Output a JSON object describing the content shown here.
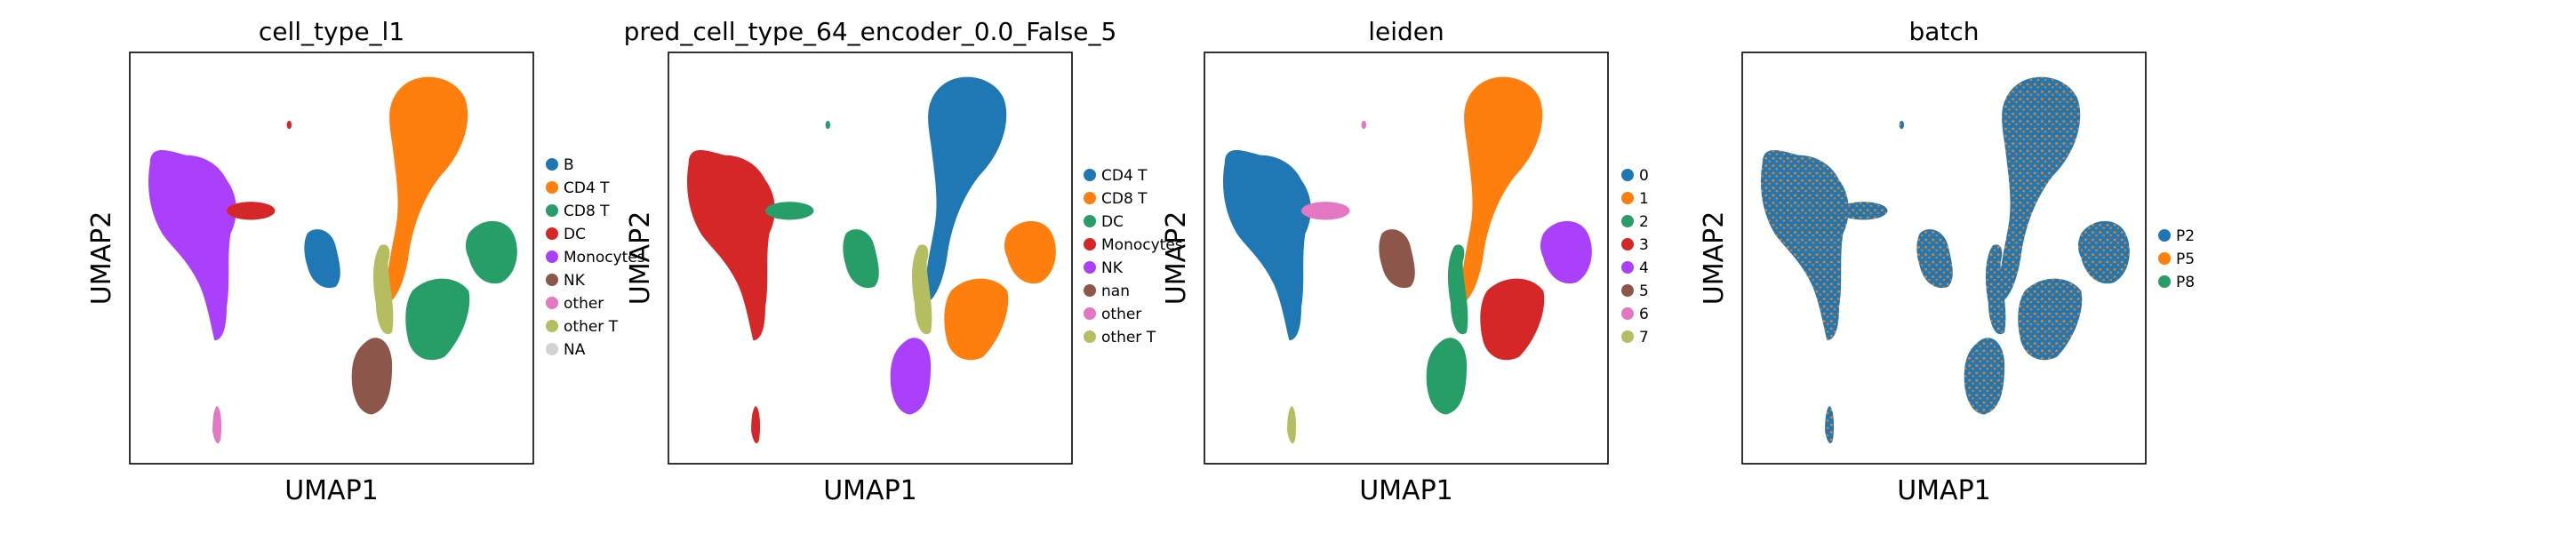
{
  "chart_data": [
    {
      "type": "scatter",
      "title": "cell_type_l1",
      "xlabel": "UMAP1",
      "ylabel": "UMAP2",
      "ticks": "none",
      "legend": "right, outside",
      "categories": [
        {
          "name": "B",
          "color": "#1f77b4"
        },
        {
          "name": "CD4 T",
          "color": "#ff7f0e"
        },
        {
          "name": "CD8 T",
          "color": "#279e68"
        },
        {
          "name": "DC",
          "color": "#d62728"
        },
        {
          "name": "Monocytes",
          "color": "#aa40fc"
        },
        {
          "name": "NK",
          "color": "#8c564b"
        },
        {
          "name": "other",
          "color": "#e377c2"
        },
        {
          "name": "other T",
          "color": "#b5bd61"
        },
        {
          "name": "NA",
          "color": "#d3d3d3"
        }
      ],
      "clusters": [
        {
          "region": "left-large",
          "color": "#aa40fc"
        },
        {
          "region": "left-arm",
          "color": "#d62728"
        },
        {
          "region": "tiny-top",
          "color": "#d62728"
        },
        {
          "region": "upper-stalk",
          "color": "#ff7f0e"
        },
        {
          "region": "mid-small",
          "color": "#1f77b4"
        },
        {
          "region": "center-small",
          "color": "#b5bd61"
        },
        {
          "region": "right-blob",
          "color": "#279e68"
        },
        {
          "region": "center-lower",
          "color": "#279e68"
        },
        {
          "region": "bottom-center",
          "color": "#8c564b"
        },
        {
          "region": "bottom-tiny",
          "color": "#e377c2"
        }
      ]
    },
    {
      "type": "scatter",
      "title": "pred_cell_type_64_encoder_0.0_False_5",
      "xlabel": "UMAP1",
      "ylabel": "UMAP2",
      "ticks": "none",
      "legend": "right, outside",
      "categories": [
        {
          "name": "CD4 T",
          "color": "#1f77b4"
        },
        {
          "name": "CD8 T",
          "color": "#ff7f0e"
        },
        {
          "name": "DC",
          "color": "#279e68"
        },
        {
          "name": "Monocytes",
          "color": "#d62728"
        },
        {
          "name": "NK",
          "color": "#aa40fc"
        },
        {
          "name": "nan",
          "color": "#8c564b"
        },
        {
          "name": "other",
          "color": "#e377c2"
        },
        {
          "name": "other T",
          "color": "#b5bd61"
        }
      ],
      "clusters": [
        {
          "region": "left-large",
          "color": "#d62728"
        },
        {
          "region": "left-arm",
          "color": "#279e68"
        },
        {
          "region": "tiny-top",
          "color": "#279e68"
        },
        {
          "region": "upper-stalk",
          "color": "#1f77b4"
        },
        {
          "region": "mid-small",
          "color": "#279e68"
        },
        {
          "region": "center-small",
          "color": "#b5bd61"
        },
        {
          "region": "right-blob",
          "color": "#ff7f0e"
        },
        {
          "region": "center-lower",
          "color": "#ff7f0e"
        },
        {
          "region": "bottom-center",
          "color": "#aa40fc"
        },
        {
          "region": "bottom-tiny",
          "color": "#d62728"
        }
      ]
    },
    {
      "type": "scatter",
      "title": "leiden",
      "xlabel": "UMAP1",
      "ylabel": "UMAP2",
      "ticks": "none",
      "legend": "right, outside",
      "categories": [
        {
          "name": "0",
          "color": "#1f77b4"
        },
        {
          "name": "1",
          "color": "#ff7f0e"
        },
        {
          "name": "2",
          "color": "#279e68"
        },
        {
          "name": "3",
          "color": "#d62728"
        },
        {
          "name": "4",
          "color": "#aa40fc"
        },
        {
          "name": "5",
          "color": "#8c564b"
        },
        {
          "name": "6",
          "color": "#e377c2"
        },
        {
          "name": "7",
          "color": "#b5bd61"
        }
      ],
      "clusters": [
        {
          "region": "left-large",
          "color": "#1f77b4"
        },
        {
          "region": "left-arm",
          "color": "#e377c2"
        },
        {
          "region": "tiny-top",
          "color": "#e377c2"
        },
        {
          "region": "upper-stalk",
          "color": "#ff7f0e"
        },
        {
          "region": "mid-small",
          "color": "#8c564b"
        },
        {
          "region": "center-small",
          "color": "#279e68"
        },
        {
          "region": "right-blob",
          "color": "#aa40fc"
        },
        {
          "region": "center-lower",
          "color": "#d62728"
        },
        {
          "region": "bottom-center",
          "color": "#279e68"
        },
        {
          "region": "bottom-tiny",
          "color": "#b5bd61"
        }
      ]
    },
    {
      "type": "scatter",
      "title": "batch",
      "xlabel": "UMAP1",
      "ylabel": "UMAP2",
      "ticks": "none",
      "legend": "right, outside",
      "categories": [
        {
          "name": "P2",
          "color": "#1f77b4"
        },
        {
          "name": "P5",
          "color": "#ff7f0e"
        },
        {
          "name": "P8",
          "color": "#279e68"
        }
      ],
      "clusters": [
        {
          "region": "left-large",
          "color": "#1f77b4",
          "mix": "#ff7f0e"
        },
        {
          "region": "left-arm",
          "color": "#1f77b4",
          "mix": "#ff7f0e"
        },
        {
          "region": "tiny-top",
          "color": "#1f77b4",
          "mix": "#ff7f0e"
        },
        {
          "region": "upper-stalk",
          "color": "#1f77b4",
          "mix": "#ff7f0e"
        },
        {
          "region": "mid-small",
          "color": "#1f77b4",
          "mix": "#ff7f0e"
        },
        {
          "region": "center-small",
          "color": "#1f77b4",
          "mix": "#ff7f0e"
        },
        {
          "region": "right-blob",
          "color": "#1f77b4",
          "mix": "#ff7f0e"
        },
        {
          "region": "center-lower",
          "color": "#1f77b4",
          "mix": "#ff7f0e"
        },
        {
          "region": "bottom-center",
          "color": "#1f77b4",
          "mix": "#ff7f0e"
        },
        {
          "region": "bottom-tiny",
          "color": "#1f77b4",
          "mix": "#ff7f0e"
        }
      ]
    }
  ]
}
